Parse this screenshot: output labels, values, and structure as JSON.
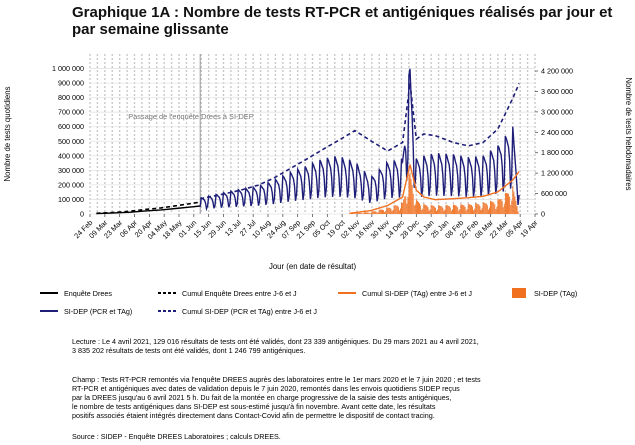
{
  "title": "Graphique 1A : Nombre de tests RT-PCR et antigéniques réalisés par jour et par semaine glissante",
  "chart_data": {
    "type": "line",
    "xlabel": "Jour (en date de résultat)",
    "ylabel_left": "Nombre de tests quotidiens",
    "ylabel_right": "Nombre de tests hebdomadaires",
    "x_ticks": [
      "24 Feb",
      "09 Mar",
      "23 Mar",
      "06 Apr",
      "20 Apr",
      "04 May",
      "18 May",
      "01 Jun",
      "15 Jun",
      "29 Jun",
      "13 Jul",
      "27 Jul",
      "10 Aug",
      "24 Aug",
      "07 Sep",
      "21 Sep",
      "05 Oct",
      "19 Oct",
      "02 Nov",
      "16 Nov",
      "30 Nov",
      "14 Dec",
      "28 Dec",
      "11 Jan",
      "25 Jan",
      "08 Feb",
      "22 Feb",
      "08 Mar",
      "22 Mar",
      "05 Apr",
      "19 Apr"
    ],
    "x_range": [
      "2020-02-24",
      "2021-04-19"
    ],
    "y_left_ticks": [
      "0",
      "100 000",
      "200 000",
      "300 000",
      "400 000",
      "500 000",
      "600 000",
      "700 000",
      "800 000",
      "900 000",
      "1 000 000"
    ],
    "y_left_range": [
      0,
      1100000
    ],
    "y_right_ticks": [
      "0",
      "600 000",
      "1 200 000",
      "1 800 000",
      "2 400 000",
      "3 000 000",
      "3 600 000",
      "4 200 000"
    ],
    "y_right_range": [
      0,
      4700000
    ],
    "annotation": "Passage de l'enquête Drees à SI-DEP",
    "annotation_date": "2020-06-07",
    "series": [
      {
        "name": "Enquête Drees",
        "axis": "left",
        "style": "solid",
        "color": "#000000",
        "x": [
          "2020-03-01",
          "2020-03-15",
          "2020-04-01",
          "2020-04-15",
          "2020-05-01",
          "2020-05-15",
          "2020-06-01",
          "2020-06-07"
        ],
        "y": [
          3000,
          6000,
          12000,
          20000,
          28000,
          38000,
          50000,
          55000
        ]
      },
      {
        "name": "Cumul Enquête Drees entre J-6 et J",
        "axis": "right",
        "style": "dashed",
        "color": "#000000",
        "x": [
          "2020-03-01",
          "2020-03-15",
          "2020-04-01",
          "2020-04-15",
          "2020-05-01",
          "2020-05-15",
          "2020-06-01",
          "2020-06-07"
        ],
        "y": [
          20000,
          40000,
          80000,
          130000,
          180000,
          240000,
          320000,
          350000
        ]
      },
      {
        "name": "SI-DEP (PCR et TAg)",
        "axis": "left",
        "style": "solid-daily",
        "color": "#1f1f7a",
        "x": [
          "2020-06-07",
          "2020-07-01",
          "2020-07-15",
          "2020-08-01",
          "2020-08-15",
          "2020-09-01",
          "2020-09-15",
          "2020-10-01",
          "2020-10-15",
          "2020-10-31",
          "2020-11-15",
          "2020-12-01",
          "2020-12-15",
          "2020-12-22",
          "2020-12-28",
          "2021-01-04",
          "2021-01-15",
          "2021-02-01",
          "2021-02-15",
          "2021-03-01",
          "2021-03-15",
          "2021-03-29",
          "2021-04-04"
        ],
        "y": [
          110000,
          150000,
          170000,
          190000,
          230000,
          290000,
          330000,
          380000,
          400000,
          360000,
          250000,
          360000,
          380000,
          1050000,
          380000,
          400000,
          420000,
          410000,
          390000,
          400000,
          470000,
          600000,
          130000
        ]
      },
      {
        "name": "Cumul SI-DEP (PCR et TAg) entre J-6 et J",
        "axis": "right",
        "style": "dashed",
        "color": "#1f1f7a",
        "x": [
          "2020-06-07",
          "2020-07-01",
          "2020-07-15",
          "2020-08-01",
          "2020-08-15",
          "2020-09-01",
          "2020-09-15",
          "2020-10-01",
          "2020-10-15",
          "2020-10-31",
          "2020-11-15",
          "2020-12-01",
          "2020-12-15",
          "2020-12-22",
          "2020-12-28",
          "2021-01-04",
          "2021-01-15",
          "2021-02-01",
          "2021-02-15",
          "2021-03-01",
          "2021-03-15",
          "2021-03-29",
          "2021-04-04"
        ],
        "y": [
          450000,
          600000,
          700000,
          850000,
          1050000,
          1350000,
          1600000,
          1900000,
          2150000,
          2450000,
          2150000,
          1850000,
          2100000,
          3850000,
          2200000,
          2350000,
          2300000,
          2100000,
          2000000,
          2100000,
          2500000,
          3400000,
          3835202
        ]
      },
      {
        "name": "Cumul SI-DEP (TAg) entre J-6 et J",
        "axis": "right",
        "style": "solid",
        "color": "#f07020",
        "x": [
          "2020-10-26",
          "2020-11-15",
          "2020-12-01",
          "2020-12-15",
          "2020-12-22",
          "2020-12-28",
          "2021-01-04",
          "2021-01-15",
          "2021-02-01",
          "2021-02-15",
          "2021-03-01",
          "2021-03-15",
          "2021-03-29",
          "2021-04-04"
        ],
        "y": [
          20000,
          100000,
          250000,
          500000,
          1450000,
          700000,
          500000,
          420000,
          450000,
          480000,
          520000,
          650000,
          1000000,
          1246799
        ]
      },
      {
        "name": "SI-DEP (TAg)",
        "axis": "left",
        "style": "bar",
        "color": "#f07020",
        "x": [
          "2020-10-26",
          "2020-11-15",
          "2020-12-01",
          "2020-12-15",
          "2020-12-22",
          "2020-12-28",
          "2021-01-04",
          "2021-01-15",
          "2021-02-01",
          "2021-02-15",
          "2021-03-01",
          "2021-03-15",
          "2021-03-29",
          "2021-04-04"
        ],
        "y": [
          3000,
          15000,
          45000,
          80000,
          300000,
          100000,
          70000,
          60000,
          65000,
          70000,
          80000,
          100000,
          190000,
          23339
        ]
      }
    ]
  },
  "legend": [
    {
      "label": "Enquête Drees",
      "style": "solid",
      "color": "#000000"
    },
    {
      "label": "Cumul Enquête Drees entre J-6 et J",
      "style": "dashed",
      "color": "#000000"
    },
    {
      "label": "Cumul SI-DEP (TAg) entre J-6 et J",
      "style": "solid",
      "color": "#f07020"
    },
    {
      "label": "SI-DEP (TAg)",
      "style": "bar",
      "color": "#f07020"
    },
    {
      "label": "SI-DEP (PCR et TAg)",
      "style": "solid",
      "color": "#1f1f7a"
    },
    {
      "label": "Cumul SI-DEP (PCR et TAg) entre J-6 et J",
      "style": "dashed",
      "color": "#1f1f7a"
    }
  ],
  "notes": {
    "lecture": [
      "Lecture : Le 4 avril 2021, 129 016 résultats de tests ont été validés, dont 23 339 antigéniques. Du 29 mars 2021 au 4 avril 2021,",
      "3 835 202 résultats de tests ont été validés, dont 1 246 799 antigéniques."
    ],
    "champ": [
      "Champ : Tests RT-PCR remontés via l'enquête DREES auprès des laboratoires entre le 1er mars 2020 et le 7 juin 2020 ; et tests",
      "RT-PCR et antigéniques avec dates de validation depuis le 7 juin 2020, remontés dans les envois quotidiens SIDEP reçus",
      "par la DREES jusqu'au 6 avril 2021 5 h. Du fait de la montée en charge progressive de la saisie des tests antigéniques,",
      "le nombre de tests antigéniques dans SI-DEP est sous-estimé jusqu'à fin novembre. Avant cette date, les résultats",
      "positifs associés étaient intégrés directement dans Contact-Covid afin de permettre le dispositif de contact tracing."
    ],
    "source": [
      "Source : SIDEP - Enquête DREES Laboratoires ; calculs DREES."
    ]
  }
}
